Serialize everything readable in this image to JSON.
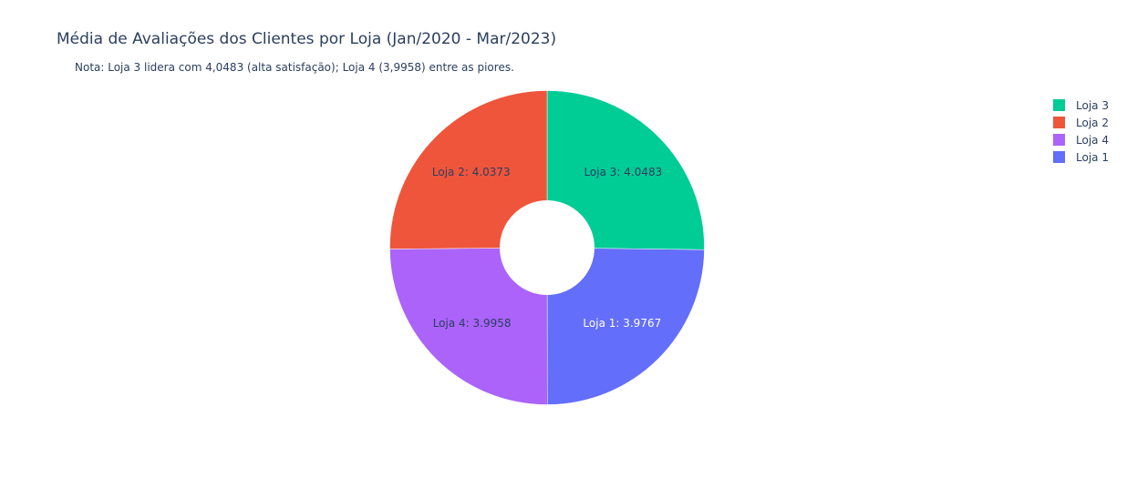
{
  "chart_data": {
    "type": "pie",
    "title": "Média de Avaliações dos Clientes por Loja (Jan/2020 - Mar/2023)",
    "subtitle": "Nota: Loja 3 lidera com 4,0483 (alta satisfação); Loja 4 (3,9958) entre as piores.",
    "hole": 0.3,
    "legend_position": "top-right",
    "slices": [
      {
        "label": "Loja 3",
        "value": 4.0483,
        "text": "Loja 3: 4.0483",
        "color": "#00cc96",
        "text_color": "#2a3f5f"
      },
      {
        "label": "Loja 1",
        "value": 3.9767,
        "text": "Loja 1: 3.9767",
        "color": "#636efa",
        "text_color": "#ffffff"
      },
      {
        "label": "Loja 4",
        "value": 3.9958,
        "text": "Loja 4: 3.9958",
        "color": "#ab63fa",
        "text_color": "#2a3f5f"
      },
      {
        "label": "Loja 2",
        "value": 4.0373,
        "text": "Loja 2: 4.0373",
        "color": "#ef553b",
        "text_color": "#2a3f5f"
      }
    ],
    "legend": [
      {
        "label": "Loja 3",
        "color": "#00cc96"
      },
      {
        "label": "Loja 2",
        "color": "#ef553b"
      },
      {
        "label": "Loja 4",
        "color": "#ab63fa"
      },
      {
        "label": "Loja 1",
        "color": "#636efa"
      }
    ]
  }
}
